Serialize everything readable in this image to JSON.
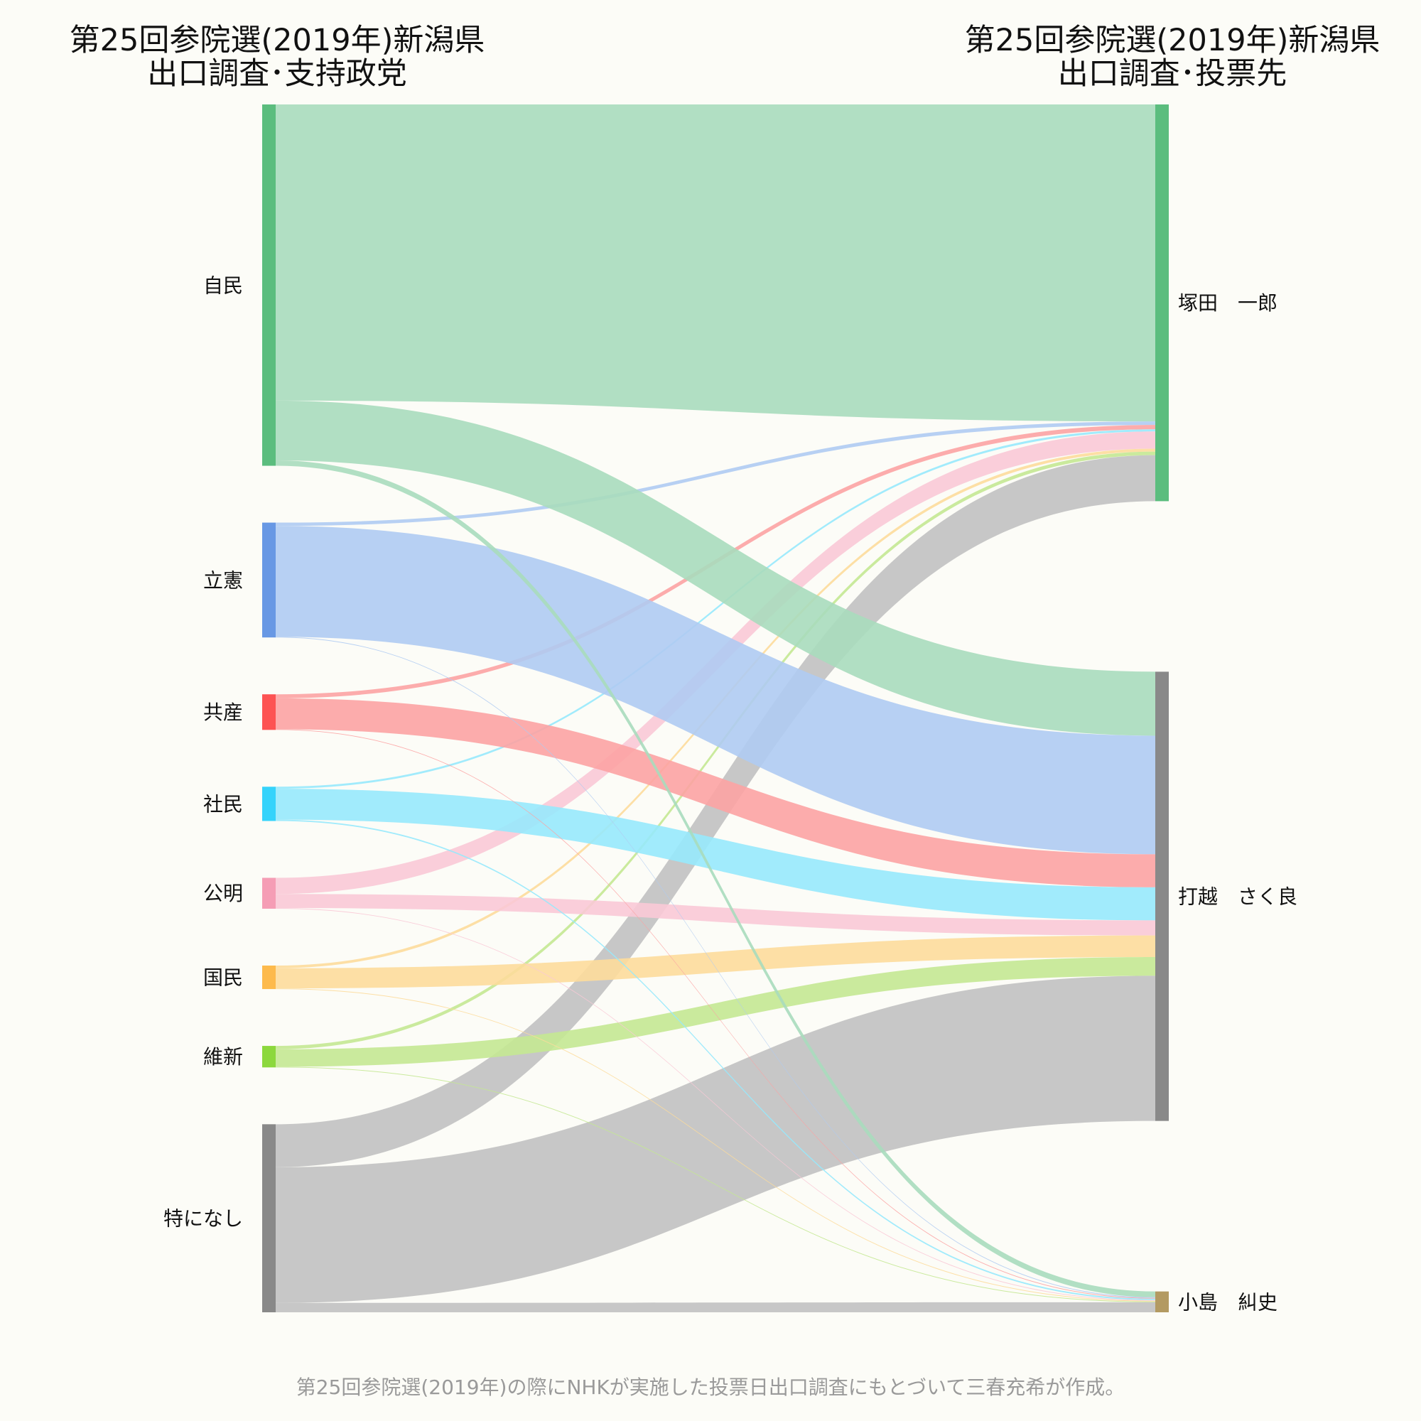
{
  "left_title": {
    "line1": "第25回参院選(2019年)新潟県",
    "line2": "出口調査･支持政党"
  },
  "right_title": {
    "line1": "第25回参院選(2019年)新潟県",
    "line2": "出口調査･投票先"
  },
  "caption": "第25回参院選(2019年)の際にNHKが実施した投票日出口調査にもとづいて三春充希が作成。",
  "chart_data": {
    "type": "sankey",
    "sources": [
      {
        "name": "自民",
        "color": "#5bbd7e",
        "link_color": "#a9dcbc"
      },
      {
        "name": "立憲",
        "color": "#6898e4",
        "link_color": "#afcbf2"
      },
      {
        "name": "共産",
        "color": "#fd5353",
        "link_color": "#fca3a3"
      },
      {
        "name": "社民",
        "color": "#35d3fb",
        "link_color": "#97e9fc"
      },
      {
        "name": "公明",
        "color": "#f59db5",
        "link_color": "#f9c9d6"
      },
      {
        "name": "国民",
        "color": "#fdba4c",
        "link_color": "#fddb9b"
      },
      {
        "name": "維新",
        "color": "#8cd83d",
        "link_color": "#c4e892"
      },
      {
        "name": "特になし",
        "color": "#898989",
        "link_color": "#c1c1c1"
      }
    ],
    "targets": [
      {
        "name": "塚田　一郎",
        "color": "#5bbd7e"
      },
      {
        "name": "打越　さく良",
        "color": "#898989"
      },
      {
        "name": "小島　糾史",
        "color": "#b39a62"
      }
    ],
    "flows": [
      [
        44.1,
        8.9,
        0.8
      ],
      [
        0.5,
        16.5,
        0.1
      ],
      [
        0.6,
        4.6,
        0.1
      ],
      [
        0.3,
        4.6,
        0.2
      ],
      [
        2.4,
        2.1,
        0.1
      ],
      [
        0.4,
        3.0,
        0.1
      ],
      [
        0.5,
        2.6,
        0.1
      ],
      [
        6.4,
        20.2,
        1.4
      ]
    ]
  }
}
